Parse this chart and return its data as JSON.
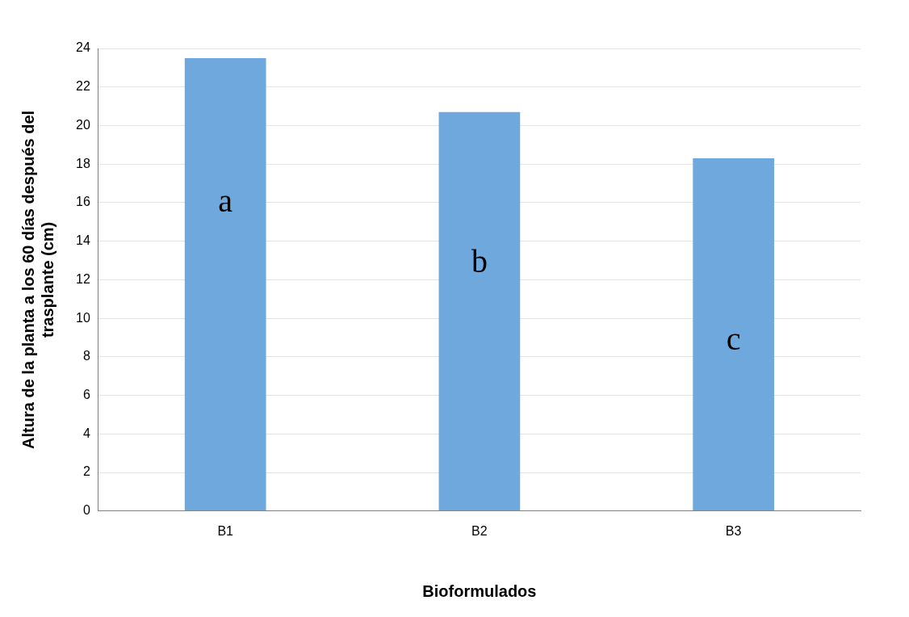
{
  "chart_data": {
    "type": "bar",
    "xlabel": "Bioformulados",
    "ylabel": "Altura de la planta a los 60 días después del trasplante (cm)",
    "categories": [
      "B1",
      "B2",
      "B3"
    ],
    "values": [
      23.5,
      20.7,
      18.3
    ],
    "color": "#6fa8dc",
    "ylim": [
      0,
      24
    ],
    "yticks": [
      0,
      2,
      4,
      6,
      8,
      10,
      12,
      14,
      16,
      18,
      20,
      22,
      24
    ],
    "grid": "y",
    "legend": false,
    "annotations": [
      "a",
      "b",
      "c"
    ]
  }
}
